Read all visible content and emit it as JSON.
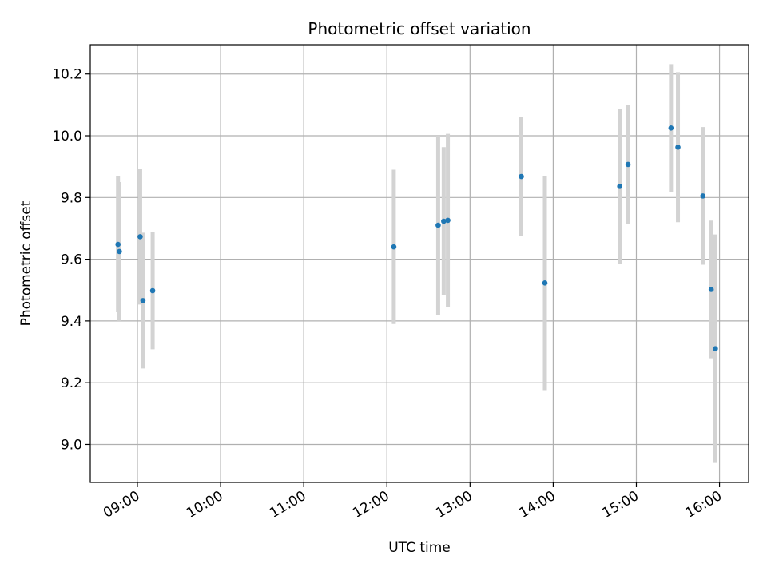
{
  "chart_data": {
    "type": "scatter",
    "title": "Photometric offset variation",
    "xlabel": "UTC time",
    "ylabel": "Photometric offset",
    "x_axis_kind": "time",
    "xlim": [
      "08:26",
      "16:21"
    ],
    "ylim": [
      8.877,
      10.295
    ],
    "x_ticks": [
      "09:00",
      "10:00",
      "11:00",
      "12:00",
      "13:00",
      "14:00",
      "15:00",
      "16:00"
    ],
    "y_ticks": [
      9.0,
      9.2,
      9.4,
      9.6,
      9.8,
      10.0,
      10.2
    ],
    "grid": true,
    "legend": "none",
    "colors": {
      "point": "#1f77b4",
      "errorbar": "#d3d3d3",
      "grid": "#b0b0b0"
    },
    "points": [
      {
        "x": "08:46",
        "y": 9.648,
        "err": 0.22
      },
      {
        "x": "08:47",
        "y": 9.625,
        "err": 0.225
      },
      {
        "x": "09:02",
        "y": 9.673,
        "err": 0.22
      },
      {
        "x": "09:04",
        "y": 9.466,
        "err": 0.22
      },
      {
        "x": "09:11",
        "y": 9.498,
        "err": 0.19
      },
      {
        "x": "12:05",
        "y": 9.64,
        "err": 0.25
      },
      {
        "x": "12:37",
        "y": 9.71,
        "err": 0.29
      },
      {
        "x": "12:41",
        "y": 9.723,
        "err": 0.24
      },
      {
        "x": "12:44",
        "y": 9.726,
        "err": 0.28
      },
      {
        "x": "13:37",
        "y": 9.868,
        "err": 0.193
      },
      {
        "x": "13:54",
        "y": 9.523,
        "err": 0.347
      },
      {
        "x": "14:48",
        "y": 9.836,
        "err": 0.25
      },
      {
        "x": "14:54",
        "y": 9.907,
        "err": 0.193
      },
      {
        "x": "15:25",
        "y": 10.025,
        "err": 0.207
      },
      {
        "x": "15:30",
        "y": 9.963,
        "err": 0.243
      },
      {
        "x": "15:48",
        "y": 9.805,
        "err": 0.223
      },
      {
        "x": "15:54",
        "y": 9.502,
        "err": 0.223
      },
      {
        "x": "15:57",
        "y": 9.31,
        "err": 0.37
      }
    ]
  }
}
